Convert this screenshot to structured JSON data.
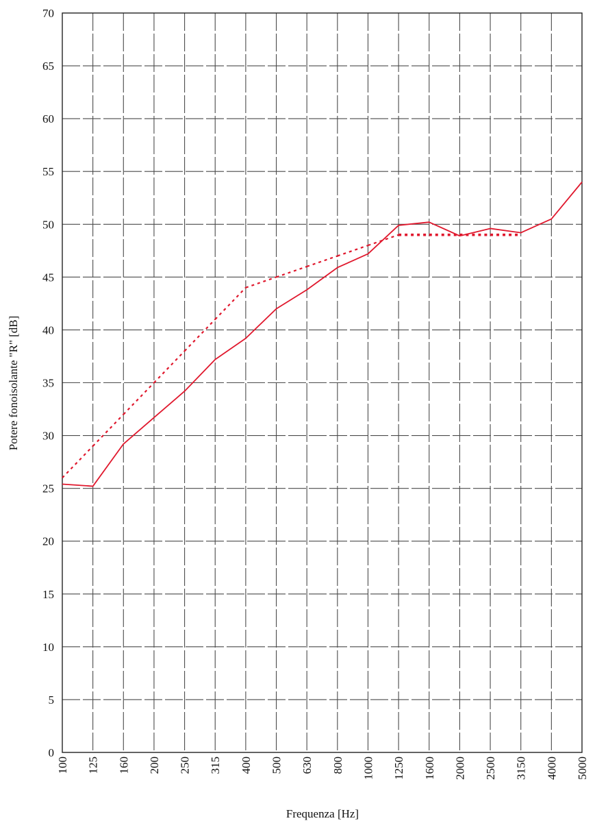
{
  "chart_data": {
    "type": "line",
    "xlabel": "Frequenza [Hz]",
    "ylabel": "Potere fonoisolante \"R\" [dB]",
    "ylim": [
      0,
      70
    ],
    "yticks": [
      "0",
      "5",
      "10",
      "15",
      "20",
      "25",
      "30",
      "35",
      "40",
      "45",
      "50",
      "55",
      "60",
      "65",
      "70"
    ],
    "categories": [
      "100",
      "125",
      "160",
      "200",
      "250",
      "315",
      "400",
      "500",
      "630",
      "800",
      "1000",
      "1250",
      "1600",
      "2000",
      "2500",
      "3150",
      "4000",
      "5000"
    ],
    "grid": true,
    "legend": "none",
    "series": [
      {
        "style": "solid",
        "color": "#e0182d",
        "values": [
          25.4,
          25.2,
          29.2,
          31.7,
          34.2,
          37.2,
          39.2,
          42.0,
          43.8,
          45.9,
          47.2,
          49.9,
          50.2,
          48.9,
          49.6,
          49.2,
          50.5,
          54.0
        ]
      },
      {
        "style": "dotted",
        "color": "#e0182d",
        "values": [
          26.0,
          29.0,
          32.0,
          35.0,
          38.0,
          41.0,
          44.0,
          45.0,
          46.0,
          47.0,
          48.0,
          49.0,
          49.0,
          49.0,
          49.0,
          49.0,
          null,
          null
        ]
      }
    ]
  }
}
